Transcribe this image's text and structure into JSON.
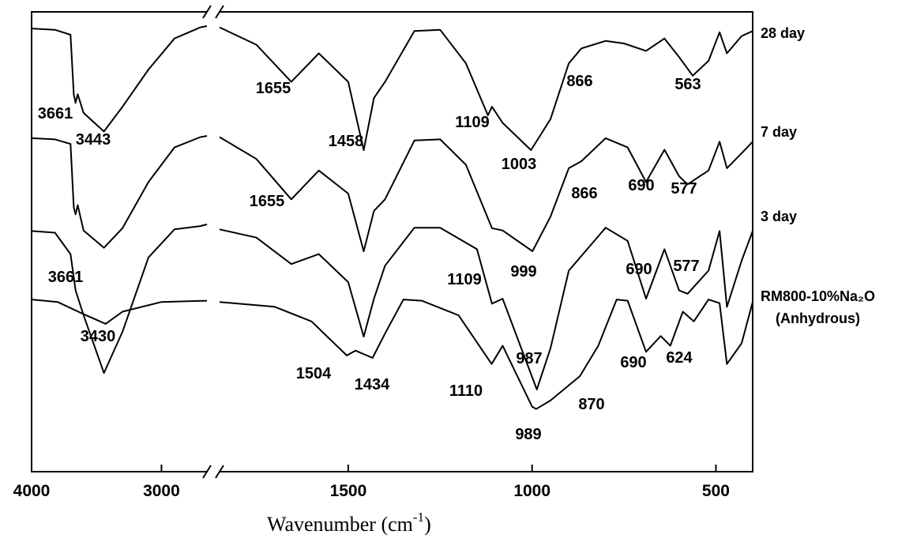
{
  "chart_data": {
    "type": "line",
    "xlabel": "Wavenumber (cm",
    "xlabel_sup": "-1",
    "xlabel_close": ")",
    "ylabel": "",
    "xlim": [
      4000,
      400
    ],
    "x_axis_break": [
      2650,
      1850
    ],
    "xticks": [
      {
        "value": 4000,
        "label": "4000"
      },
      {
        "value": 3000,
        "label": "3000"
      },
      {
        "value": 1500,
        "label": "1500"
      },
      {
        "value": 1000,
        "label": "1000"
      },
      {
        "value": 500,
        "label": "500"
      }
    ],
    "series": [
      {
        "name": "28 day",
        "points": [
          [
            4000,
            0.98
          ],
          [
            3820,
            0.97
          ],
          [
            3700,
            0.93
          ],
          [
            3675,
            0.45
          ],
          [
            3661,
            0.38
          ],
          [
            3645,
            0.45
          ],
          [
            3600,
            0.3
          ],
          [
            3443,
            0.15
          ],
          [
            3300,
            0.35
          ],
          [
            3100,
            0.65
          ],
          [
            2900,
            0.9
          ],
          [
            2700,
            0.99
          ],
          [
            2650,
            1.0
          ],
          [
            1850,
            0.99
          ],
          [
            1750,
            0.85
          ],
          [
            1655,
            0.55
          ],
          [
            1580,
            0.78
          ],
          [
            1500,
            0.55
          ],
          [
            1458,
            0.0
          ],
          [
            1430,
            0.42
          ],
          [
            1400,
            0.55
          ],
          [
            1320,
            0.96
          ],
          [
            1250,
            0.97
          ],
          [
            1180,
            0.7
          ],
          [
            1120,
            0.28
          ],
          [
            1109,
            0.35
          ],
          [
            1080,
            0.22
          ],
          [
            1003,
            0.0
          ],
          [
            950,
            0.25
          ],
          [
            900,
            0.7
          ],
          [
            866,
            0.82
          ],
          [
            800,
            0.88
          ],
          [
            750,
            0.86
          ],
          [
            690,
            0.8
          ],
          [
            640,
            0.9
          ],
          [
            600,
            0.75
          ],
          [
            563,
            0.6
          ],
          [
            520,
            0.72
          ],
          [
            490,
            0.95
          ],
          [
            470,
            0.78
          ],
          [
            430,
            0.92
          ],
          [
            400,
            0.96
          ]
        ]
      },
      {
        "name": "7 day",
        "points": [
          [
            4000,
            0.98
          ],
          [
            3820,
            0.97
          ],
          [
            3700,
            0.93
          ],
          [
            3675,
            0.38
          ],
          [
            3661,
            0.32
          ],
          [
            3645,
            0.4
          ],
          [
            3600,
            0.18
          ],
          [
            3443,
            0.03
          ],
          [
            3300,
            0.2
          ],
          [
            3100,
            0.6
          ],
          [
            2900,
            0.9
          ],
          [
            2700,
            0.99
          ],
          [
            2650,
            1.0
          ],
          [
            1850,
            0.99
          ],
          [
            1750,
            0.8
          ],
          [
            1655,
            0.45
          ],
          [
            1580,
            0.7
          ],
          [
            1500,
            0.5
          ],
          [
            1458,
            0.0
          ],
          [
            1430,
            0.35
          ],
          [
            1400,
            0.45
          ],
          [
            1320,
            0.96
          ],
          [
            1250,
            0.97
          ],
          [
            1180,
            0.75
          ],
          [
            1109,
            0.2
          ],
          [
            1080,
            0.18
          ],
          [
            999,
            0.0
          ],
          [
            950,
            0.3
          ],
          [
            900,
            0.72
          ],
          [
            866,
            0.78
          ],
          [
            800,
            0.98
          ],
          [
            740,
            0.9
          ],
          [
            690,
            0.6
          ],
          [
            640,
            0.88
          ],
          [
            600,
            0.65
          ],
          [
            577,
            0.58
          ],
          [
            520,
            0.7
          ],
          [
            490,
            0.95
          ],
          [
            470,
            0.72
          ],
          [
            430,
            0.85
          ],
          [
            400,
            0.95
          ]
        ]
      },
      {
        "name": "3 day",
        "points": [
          [
            4000,
            0.96
          ],
          [
            3820,
            0.95
          ],
          [
            3700,
            0.82
          ],
          [
            3661,
            0.6
          ],
          [
            3600,
            0.45
          ],
          [
            3443,
            0.1
          ],
          [
            3300,
            0.35
          ],
          [
            3100,
            0.8
          ],
          [
            2900,
            0.97
          ],
          [
            2700,
            0.99
          ],
          [
            2650,
            1.0
          ],
          [
            1850,
            0.97
          ],
          [
            1750,
            0.92
          ],
          [
            1655,
            0.76
          ],
          [
            1580,
            0.82
          ],
          [
            1500,
            0.65
          ],
          [
            1458,
            0.32
          ],
          [
            1430,
            0.55
          ],
          [
            1400,
            0.75
          ],
          [
            1320,
            0.98
          ],
          [
            1250,
            0.98
          ],
          [
            1150,
            0.85
          ],
          [
            1109,
            0.52
          ],
          [
            1080,
            0.55
          ],
          [
            987,
            0.0
          ],
          [
            950,
            0.25
          ],
          [
            900,
            0.72
          ],
          [
            800,
            0.98
          ],
          [
            740,
            0.9
          ],
          [
            690,
            0.55
          ],
          [
            640,
            0.85
          ],
          [
            600,
            0.6
          ],
          [
            577,
            0.58
          ],
          [
            520,
            0.72
          ],
          [
            490,
            0.96
          ],
          [
            470,
            0.5
          ],
          [
            430,
            0.78
          ],
          [
            400,
            0.96
          ]
        ]
      },
      {
        "name": "RM800-10%Na2O (Anhydrous)",
        "points": [
          [
            4000,
            0.98
          ],
          [
            3800,
            0.96
          ],
          [
            3600,
            0.86
          ],
          [
            3430,
            0.78
          ],
          [
            3300,
            0.88
          ],
          [
            3000,
            0.96
          ],
          [
            2650,
            0.97
          ],
          [
            1850,
            0.96
          ],
          [
            1700,
            0.92
          ],
          [
            1600,
            0.8
          ],
          [
            1504,
            0.52
          ],
          [
            1480,
            0.56
          ],
          [
            1434,
            0.5
          ],
          [
            1400,
            0.7
          ],
          [
            1350,
            0.98
          ],
          [
            1300,
            0.97
          ],
          [
            1200,
            0.85
          ],
          [
            1110,
            0.45
          ],
          [
            1080,
            0.6
          ],
          [
            1000,
            0.1
          ],
          [
            989,
            0.08
          ],
          [
            950,
            0.15
          ],
          [
            870,
            0.35
          ],
          [
            820,
            0.6
          ],
          [
            770,
            0.98
          ],
          [
            740,
            0.97
          ],
          [
            690,
            0.55
          ],
          [
            650,
            0.68
          ],
          [
            624,
            0.6
          ],
          [
            590,
            0.88
          ],
          [
            560,
            0.8
          ],
          [
            520,
            0.98
          ],
          [
            490,
            0.95
          ],
          [
            470,
            0.45
          ],
          [
            430,
            0.62
          ],
          [
            400,
            0.96
          ]
        ]
      }
    ],
    "series_labels": [
      {
        "text": "28 day"
      },
      {
        "text": "7 day"
      },
      {
        "text": "3 day"
      },
      {
        "text": "RM800-10%Na₂O"
      },
      {
        "text": "(Anhydrous)"
      }
    ],
    "annotations": [
      {
        "text": "3661",
        "x": 3661,
        "series": "28 day"
      },
      {
        "text": "3443",
        "x": 3443,
        "series": "28 day"
      },
      {
        "text": "1655",
        "x": 1655,
        "series": "28 day"
      },
      {
        "text": "1458",
        "x": 1458,
        "series": "28 day"
      },
      {
        "text": "1109",
        "x": 1109,
        "series": "28 day"
      },
      {
        "text": "1003",
        "x": 1003,
        "series": "28 day"
      },
      {
        "text": "866",
        "x": 866,
        "series": "28 day"
      },
      {
        "text": "563",
        "x": 563,
        "series": "28 day"
      },
      {
        "text": "1655",
        "x": 1655,
        "series": "7 day"
      },
      {
        "text": "866",
        "x": 866,
        "series": "7 day"
      },
      {
        "text": "690",
        "x": 690,
        "series": "7 day"
      },
      {
        "text": "577",
        "x": 577,
        "series": "7 day"
      },
      {
        "text": "999",
        "x": 999,
        "series": "7 day"
      },
      {
        "text": "3661",
        "x": 3661,
        "series": "3 day"
      },
      {
        "text": "1109",
        "x": 1109,
        "series": "3 day"
      },
      {
        "text": "690",
        "x": 690,
        "series": "3 day"
      },
      {
        "text": "577",
        "x": 577,
        "series": "3 day"
      },
      {
        "text": "987",
        "x": 987,
        "series": "3 day"
      },
      {
        "text": "3430",
        "x": 3430,
        "series": "RM800-10%Na2O (Anhydrous)"
      },
      {
        "text": "1504",
        "x": 1504,
        "series": "RM800-10%Na2O (Anhydrous)"
      },
      {
        "text": "1434",
        "x": 1434,
        "series": "RM800-10%Na2O (Anhydrous)"
      },
      {
        "text": "1110",
        "x": 1110,
        "series": "RM800-10%Na2O (Anhydrous)"
      },
      {
        "text": "870",
        "x": 870,
        "series": "RM800-10%Na2O (Anhydrous)"
      },
      {
        "text": "690",
        "x": 690,
        "series": "RM800-10%Na2O (Anhydrous)"
      },
      {
        "text": "624",
        "x": 624,
        "series": "RM800-10%Na2O (Anhydrous)"
      },
      {
        "text": "989",
        "x": 989,
        "series": "RM800-10%Na2O (Anhydrous)"
      }
    ],
    "grid": false,
    "colors": {
      "line": "#000000",
      "background": "#ffffff"
    }
  }
}
